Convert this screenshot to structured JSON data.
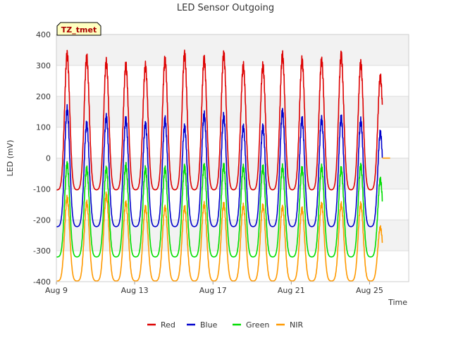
{
  "chart_data": {
    "type": "line",
    "title": "LED Sensor Outgoing",
    "xlabel": "Time",
    "ylabel": "LED (mV)",
    "site_tag": "TZ_tmet",
    "ylim": [
      -400,
      400
    ],
    "xlim": [
      0,
      18
    ],
    "y_ticks": [
      -400,
      -300,
      -200,
      -100,
      0,
      100,
      200,
      300,
      400
    ],
    "x_ticks": [
      {
        "value": 0,
        "label": "Aug 9"
      },
      {
        "value": 4,
        "label": "Aug 13"
      },
      {
        "value": 8,
        "label": "Aug 17"
      },
      {
        "value": 12,
        "label": "Aug 21"
      },
      {
        "value": 16,
        "label": "Aug 25"
      }
    ],
    "grid": true,
    "legend_position": "bottom",
    "day_peak_offset": 0.55,
    "series_end_day": 16.65,
    "flat_segment": {
      "start_day": 16.65,
      "end_day": 17.05,
      "value": 0,
      "series": "NIR"
    },
    "series": [
      {
        "name": "Red",
        "color": "#dd0000",
        "night_value": -103,
        "daily_peaks": [
          335,
          325,
          310,
          300,
          298,
          318,
          335,
          320,
          335,
          298,
          298,
          332,
          316,
          315,
          333,
          306,
          262
        ]
      },
      {
        "name": "Blue",
        "color": "#0000cc",
        "night_value": -222,
        "daily_peaks": [
          158,
          110,
          132,
          125,
          110,
          125,
          100,
          140,
          135,
          100,
          100,
          150,
          125,
          125,
          130,
          120,
          82
        ]
      },
      {
        "name": "Green",
        "color": "#00dd00",
        "night_value": -320,
        "daily_peaks": [
          -20,
          -35,
          -35,
          -25,
          -35,
          -35,
          -30,
          -25,
          -25,
          -30,
          -30,
          -30,
          -35,
          -30,
          -35,
          -25,
          -70
        ]
      },
      {
        "name": "NIR",
        "color": "#ff9900",
        "night_value": -398,
        "daily_peaks": [
          -130,
          -145,
          -120,
          -145,
          -160,
          -160,
          -160,
          -150,
          -150,
          -155,
          -155,
          -160,
          -165,
          -150,
          -150,
          -150,
          -225
        ]
      }
    ]
  }
}
